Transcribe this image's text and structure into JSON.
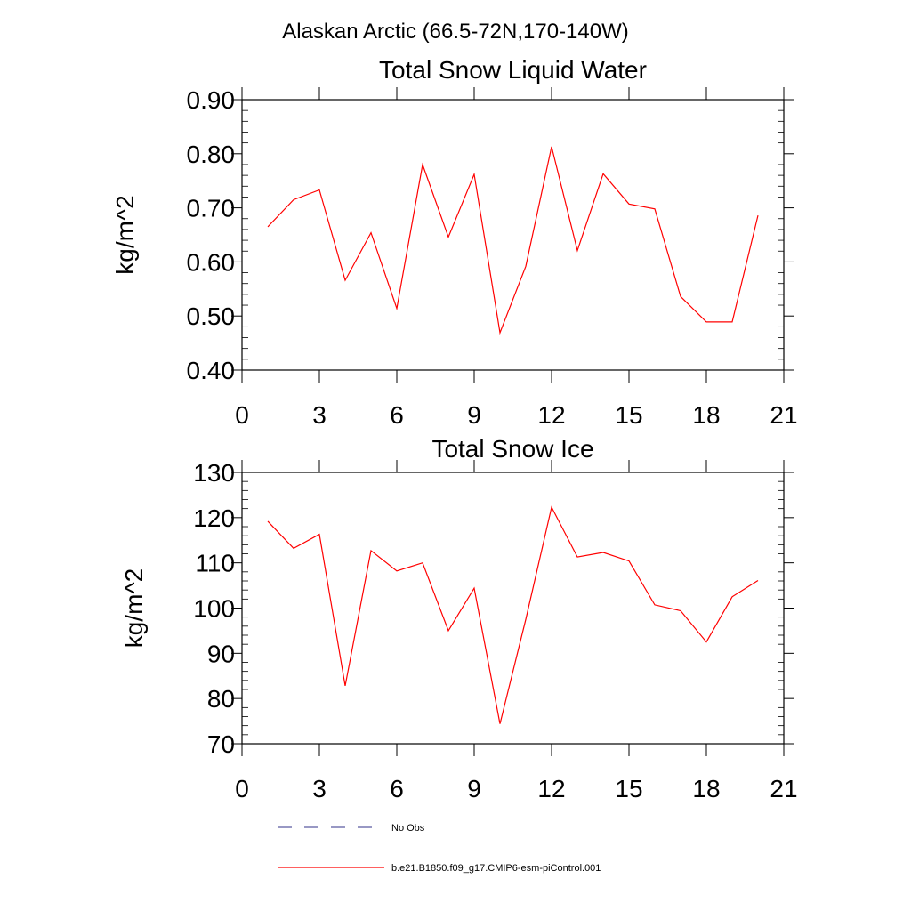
{
  "page": {
    "supertitle": "Alaskan Arctic (66.5-72N,170-140W)"
  },
  "chart_data": [
    {
      "type": "line",
      "title": "Total Snow Liquid Water",
      "xlabel": "",
      "ylabel": "kg/m^2",
      "xlim": [
        0,
        21
      ],
      "ylim": [
        0.4,
        0.9
      ],
      "xticks": [
        0,
        3,
        6,
        9,
        12,
        15,
        18,
        21
      ],
      "xtick_labels": [
        "0",
        "3",
        "6",
        "9",
        "12",
        "15",
        "18",
        "21"
      ],
      "yticks": [
        0.4,
        0.5,
        0.6,
        0.7,
        0.8,
        0.9
      ],
      "ytick_labels": [
        "0.40",
        "0.50",
        "0.60",
        "0.70",
        "0.80",
        "0.90"
      ],
      "series": [
        {
          "name": "b.e21.B1850.f09_g17.CMIP6-esm-piControl.001",
          "color": "#ff0000",
          "x": [
            1,
            2,
            3,
            4,
            5,
            6,
            7,
            8,
            9,
            10,
            11,
            12,
            13,
            14,
            15,
            16,
            17,
            18,
            19,
            20
          ],
          "y": [
            0.665,
            0.715,
            0.733,
            0.566,
            0.654,
            0.514,
            0.78,
            0.646,
            0.762,
            0.469,
            0.592,
            0.813,
            0.621,
            0.763,
            0.707,
            0.698,
            0.536,
            0.489,
            0.489,
            0.686
          ]
        }
      ]
    },
    {
      "type": "line",
      "title": "Total Snow Ice",
      "xlabel": "",
      "ylabel": "kg/m^2",
      "xlim": [
        0,
        21
      ],
      "ylim": [
        70,
        130
      ],
      "xticks": [
        0,
        3,
        6,
        9,
        12,
        15,
        18,
        21
      ],
      "xtick_labels": [
        "0",
        "3",
        "6",
        "9",
        "12",
        "15",
        "18",
        "21"
      ],
      "yticks": [
        70,
        80,
        90,
        100,
        110,
        120,
        130
      ],
      "ytick_labels": [
        "70",
        "80",
        "90",
        "100",
        "110",
        "120",
        "130"
      ],
      "series": [
        {
          "name": "b.e21.B1850.f09_g17.CMIP6-esm-piControl.001",
          "color": "#ff0000",
          "x": [
            1,
            2,
            3,
            4,
            5,
            6,
            7,
            8,
            9,
            10,
            11,
            12,
            13,
            14,
            15,
            16,
            17,
            18,
            19,
            20
          ],
          "y": [
            119.2,
            113.2,
            116.3,
            82.8,
            112.7,
            108.2,
            110.0,
            95.0,
            104.4,
            74.4,
            97.5,
            122.3,
            111.3,
            112.3,
            110.4,
            100.7,
            99.4,
            92.5,
            102.5,
            106.1
          ]
        }
      ]
    }
  ],
  "legend": {
    "items": [
      {
        "label": "No Obs",
        "color": "#5a5aa0",
        "style": "dashed"
      },
      {
        "label": "b.e21.B1850.f09_g17.CMIP6-esm-piControl.001",
        "color": "#ff0000",
        "style": "solid"
      }
    ]
  }
}
